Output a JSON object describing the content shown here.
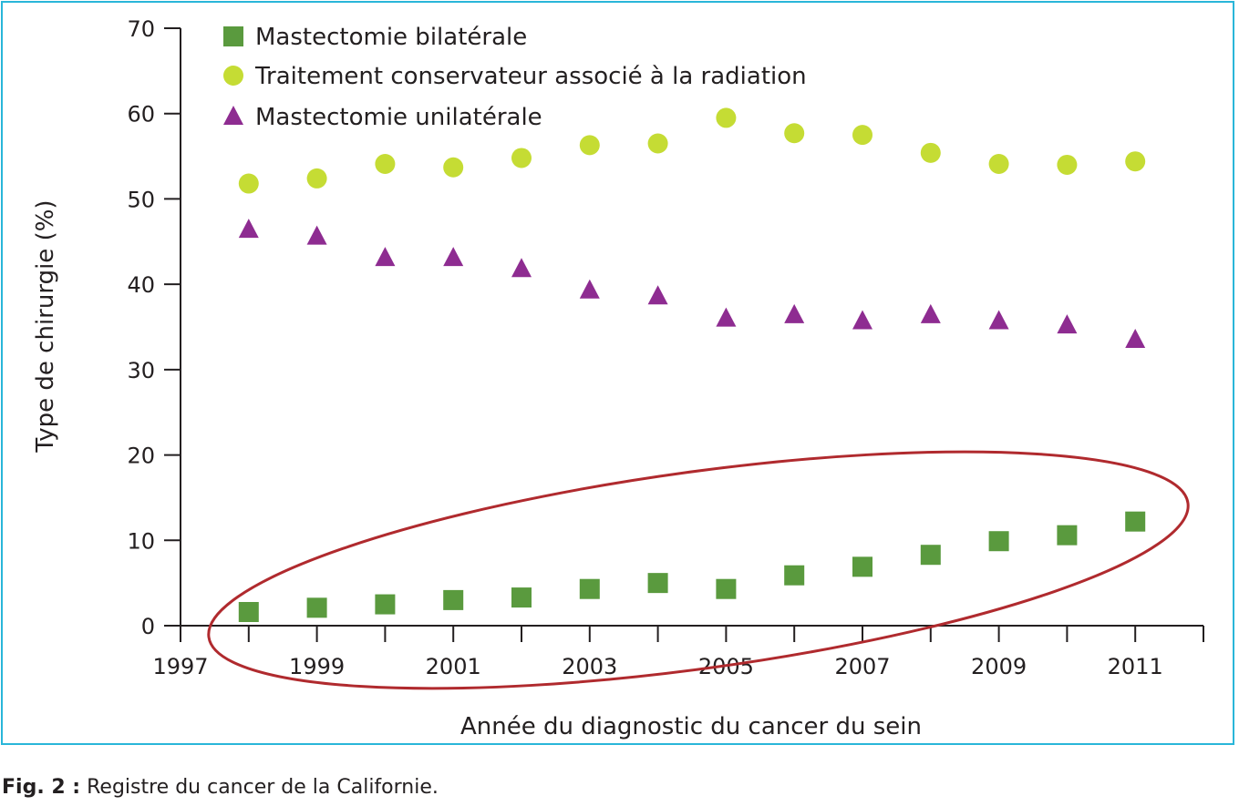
{
  "colors": {
    "frame": "#29b6d9",
    "axis": "#231f20",
    "highlight_ellipse": "#b02a2e"
  },
  "caption": {
    "prefix": "Fig. 2 :",
    "text": "Registre du cancer de la Californie."
  },
  "chart_data": {
    "type": "scatter",
    "title": "",
    "xlabel": "Année du diagnostic du cancer du sein",
    "ylabel": "Type de chirurgie (%)",
    "xlim": [
      1997,
      2012
    ],
    "ylim": [
      0,
      70
    ],
    "x_ticks": [
      "1997",
      "1999",
      "2001",
      "2003",
      "2005",
      "2007",
      "2009",
      "2011"
    ],
    "y_ticks": [
      "0",
      "10",
      "20",
      "30",
      "40",
      "50",
      "60",
      "70"
    ],
    "grid": false,
    "legend_position": "top-left",
    "annotations": [
      {
        "type": "ellipse",
        "description": "highlights Mastectomie bilatérale series",
        "color": "#b02a2e"
      }
    ],
    "series": [
      {
        "name": "Mastectomie bilatérale",
        "marker": "square",
        "color": "#5a9a3e",
        "x": [
          1998,
          1999,
          2000,
          2001,
          2002,
          2003,
          2004,
          2005,
          2006,
          2007,
          2008,
          2009,
          2010,
          2011
        ],
        "y": [
          1.6,
          2.1,
          2.5,
          3.0,
          3.3,
          4.3,
          5.0,
          4.3,
          5.9,
          6.9,
          8.3,
          9.9,
          10.6,
          12.2
        ]
      },
      {
        "name": "Traitement conservateur associé à la radiation",
        "marker": "circle",
        "color": "#c5dc34",
        "x": [
          1998,
          1999,
          2000,
          2001,
          2002,
          2003,
          2004,
          2005,
          2006,
          2007,
          2008,
          2009,
          2010,
          2011
        ],
        "y": [
          51.8,
          52.4,
          54.1,
          53.7,
          54.8,
          56.3,
          56.5,
          59.5,
          57.7,
          57.5,
          55.4,
          54.1,
          54.0,
          54.4
        ]
      },
      {
        "name": "Mastectomie unilatérale",
        "marker": "triangle",
        "color": "#8e2c91",
        "x": [
          1998,
          1999,
          2000,
          2001,
          2002,
          2003,
          2004,
          2005,
          2006,
          2007,
          2008,
          2009,
          2010,
          2011
        ],
        "y": [
          46.4,
          45.6,
          43.1,
          43.1,
          41.8,
          39.3,
          38.6,
          36.0,
          36.4,
          35.7,
          36.4,
          35.7,
          35.2,
          33.5
        ]
      }
    ]
  }
}
